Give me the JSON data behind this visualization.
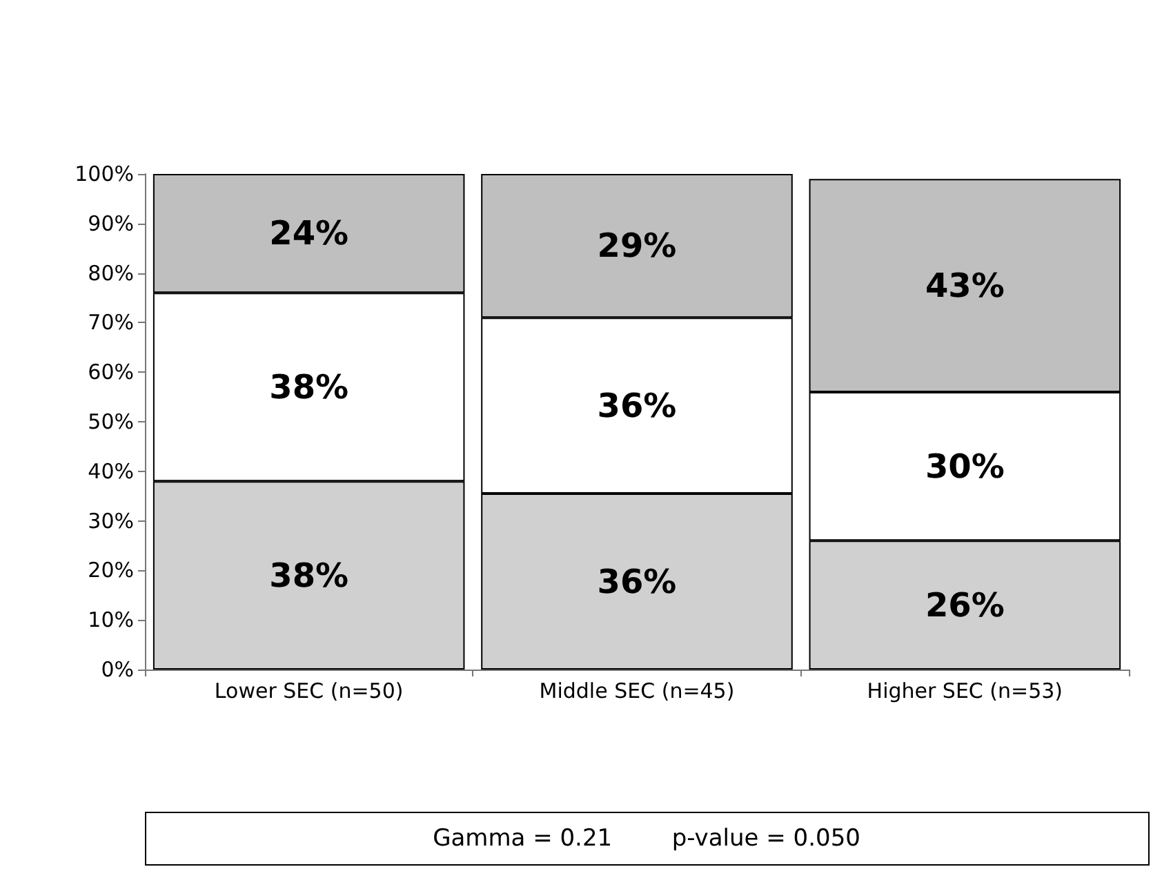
{
  "chart_data": {
    "type": "bar",
    "stacked": true,
    "categories": [
      "Lower SEC (n=50)",
      "Middle SEC (n=45)",
      "Higher SEC (n=53)"
    ],
    "series": [
      {
        "color": "#d0d0d0",
        "values": [
          38,
          35.5,
          26
        ],
        "value_labels": [
          "38%",
          "36%",
          "26%"
        ]
      },
      {
        "color": "#ffffff",
        "values": [
          38,
          35.5,
          30
        ],
        "value_labels": [
          "38%",
          "36%",
          "30%"
        ]
      },
      {
        "color": "#bfbfbf",
        "values": [
          24,
          29,
          43
        ],
        "value_labels": [
          "24%",
          "29%",
          "43%"
        ]
      }
    ],
    "ylim": [
      0,
      100
    ],
    "yticks": [
      {
        "value": 0,
        "label": "0%"
      },
      {
        "value": 10,
        "label": "10%"
      },
      {
        "value": 20,
        "label": "20%"
      },
      {
        "value": 30,
        "label": "30%"
      },
      {
        "value": 40,
        "label": "40%"
      },
      {
        "value": 50,
        "label": "50%"
      },
      {
        "value": 60,
        "label": "60%"
      },
      {
        "value": 70,
        "label": "70%"
      },
      {
        "value": 80,
        "label": "80%"
      },
      {
        "value": 90,
        "label": "90%"
      },
      {
        "value": 100,
        "label": "100%"
      }
    ],
    "grid": false,
    "annotations": [
      "Gamma = 0.21        p-value = 0.050"
    ]
  }
}
